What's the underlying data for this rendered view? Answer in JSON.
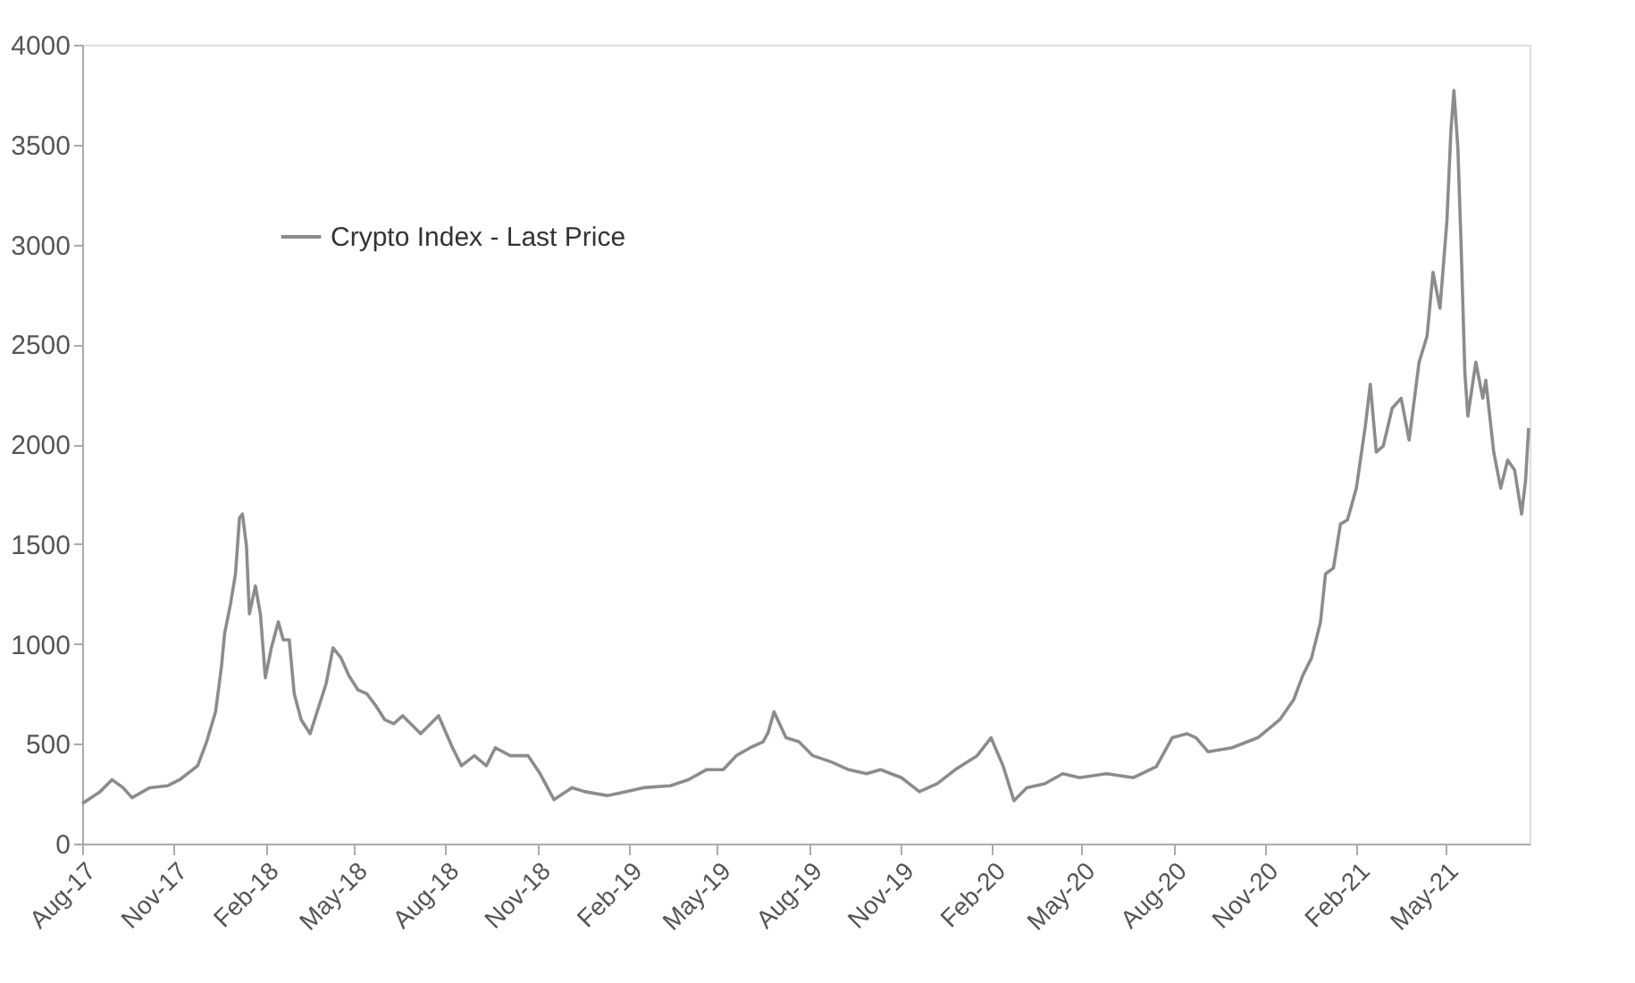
{
  "chart_data": {
    "type": "line",
    "legend": "top left",
    "grid": false,
    "marker": "none",
    "line_style": "solid",
    "xlim": [
      "2017-08-01",
      "2021-07-25"
    ],
    "xticks": [
      {
        "value": "2017-08-01",
        "label": "Aug-17"
      },
      {
        "value": "2017-11-01",
        "label": "Nov-17"
      },
      {
        "value": "2018-02-01",
        "label": "Feb-18"
      },
      {
        "value": "2018-05-01",
        "label": "May-18"
      },
      {
        "value": "2018-08-01",
        "label": "Aug-18"
      },
      {
        "value": "2018-11-01",
        "label": "Nov-18"
      },
      {
        "value": "2019-02-01",
        "label": "Feb-19"
      },
      {
        "value": "2019-05-01",
        "label": "May-19"
      },
      {
        "value": "2019-08-01",
        "label": "Aug-19"
      },
      {
        "value": "2019-11-01",
        "label": "Nov-19"
      },
      {
        "value": "2020-02-01",
        "label": "Feb-20"
      },
      {
        "value": "2020-05-01",
        "label": "May-20"
      },
      {
        "value": "2020-08-01",
        "label": "Aug-20"
      },
      {
        "value": "2020-11-01",
        "label": "Nov-20"
      },
      {
        "value": "2021-02-01",
        "label": "Feb-21"
      },
      {
        "value": "2021-05-01",
        "label": "May-21"
      }
    ],
    "ylim": [
      0,
      4000
    ],
    "yticks": [
      0,
      500,
      1000,
      1500,
      2000,
      2500,
      3000,
      3500,
      4000
    ],
    "x": [
      "2017-08-01",
      "2017-08-19",
      "2017-08-31",
      "2017-09-11",
      "2017-09-20",
      "2017-10-08",
      "2017-10-26",
      "2017-11-07",
      "2017-11-25",
      "2017-12-04",
      "2017-12-13",
      "2017-12-19",
      "2017-12-22",
      "2017-12-28",
      "2018-01-02",
      "2018-01-06",
      "2018-01-09",
      "2018-01-13",
      "2018-01-16",
      "2018-01-22",
      "2018-01-27",
      "2018-02-01",
      "2018-02-07",
      "2018-02-14",
      "2018-02-19",
      "2018-02-25",
      "2018-03-02",
      "2018-03-09",
      "2018-03-18",
      "2018-03-25",
      "2018-04-03",
      "2018-04-10",
      "2018-04-18",
      "2018-04-26",
      "2018-05-05",
      "2018-05-14",
      "2018-05-23",
      "2018-06-01",
      "2018-06-10",
      "2018-06-19",
      "2018-07-07",
      "2018-07-25",
      "2018-08-08",
      "2018-08-17",
      "2018-08-30",
      "2018-09-11",
      "2018-09-20",
      "2018-10-05",
      "2018-10-23",
      "2018-11-04",
      "2018-11-18",
      "2018-12-06",
      "2018-12-19",
      "2019-01-11",
      "2019-01-29",
      "2019-02-16",
      "2019-03-15",
      "2019-04-02",
      "2019-04-20",
      "2019-05-07",
      "2019-05-20",
      "2019-06-03",
      "2019-06-16",
      "2019-06-21",
      "2019-06-27",
      "2019-07-09",
      "2019-07-22",
      "2019-08-05",
      "2019-08-23",
      "2019-09-10",
      "2019-09-28",
      "2019-10-12",
      "2019-11-02",
      "2019-11-20",
      "2019-12-08",
      "2019-12-26",
      "2020-01-17",
      "2020-01-31",
      "2020-02-12",
      "2020-02-23",
      "2020-03-07",
      "2020-03-25",
      "2020-04-12",
      "2020-04-29",
      "2020-05-26",
      "2020-06-22",
      "2020-07-15",
      "2020-07-31",
      "2020-08-15",
      "2020-08-24",
      "2020-09-05",
      "2020-09-29",
      "2020-10-25",
      "2020-11-16",
      "2020-11-30",
      "2020-12-09",
      "2020-12-18",
      "2020-12-27",
      "2021-01-01",
      "2021-01-09",
      "2021-01-16",
      "2021-01-23",
      "2021-02-01",
      "2021-02-10",
      "2021-02-15",
      "2021-02-21",
      "2021-02-28",
      "2021-03-09",
      "2021-03-18",
      "2021-03-26",
      "2021-04-05",
      "2021-04-13",
      "2021-04-19",
      "2021-04-26",
      "2021-05-03",
      "2021-05-07",
      "2021-05-10",
      "2021-05-14",
      "2021-05-17",
      "2021-05-21",
      "2021-05-24",
      "2021-06-01",
      "2021-06-08",
      "2021-06-11",
      "2021-06-19",
      "2021-06-26",
      "2021-07-03",
      "2021-07-10",
      "2021-07-17",
      "2021-07-21",
      "2021-07-24"
    ],
    "series": [
      {
        "name": "Crypto Index - Last Price",
        "color": "#8c8c8c",
        "values": [
          200,
          260,
          320,
          280,
          230,
          280,
          290,
          320,
          390,
          510,
          660,
          890,
          1050,
          1200,
          1350,
          1630,
          1650,
          1490,
          1150,
          1290,
          1150,
          830,
          980,
          1110,
          1020,
          1020,
          750,
          620,
          550,
          660,
          800,
          980,
          930,
          840,
          770,
          750,
          690,
          620,
          600,
          640,
          550,
          640,
          480,
          390,
          440,
          390,
          480,
          440,
          440,
          350,
          220,
          280,
          260,
          240,
          260,
          280,
          290,
          320,
          370,
          370,
          440,
          480,
          510,
          555,
          660,
          530,
          510,
          440,
          410,
          370,
          350,
          370,
          330,
          260,
          300,
          370,
          440,
          530,
          390,
          215,
          280,
          300,
          350,
          330,
          350,
          330,
          385,
          530,
          550,
          530,
          460,
          480,
          530,
          620,
          720,
          840,
          930,
          1110,
          1350,
          1380,
          1600,
          1620,
          1780,
          2090,
          2300,
          1960,
          1990,
          2180,
          2230,
          2020,
          2410,
          2540,
          2860,
          2680,
          3120,
          3570,
          3770,
          3480,
          3030,
          2360,
          2140,
          2410,
          2230,
          2320,
          1960,
          1780,
          1920,
          1870,
          1650,
          1820,
          2080
        ]
      }
    ]
  }
}
